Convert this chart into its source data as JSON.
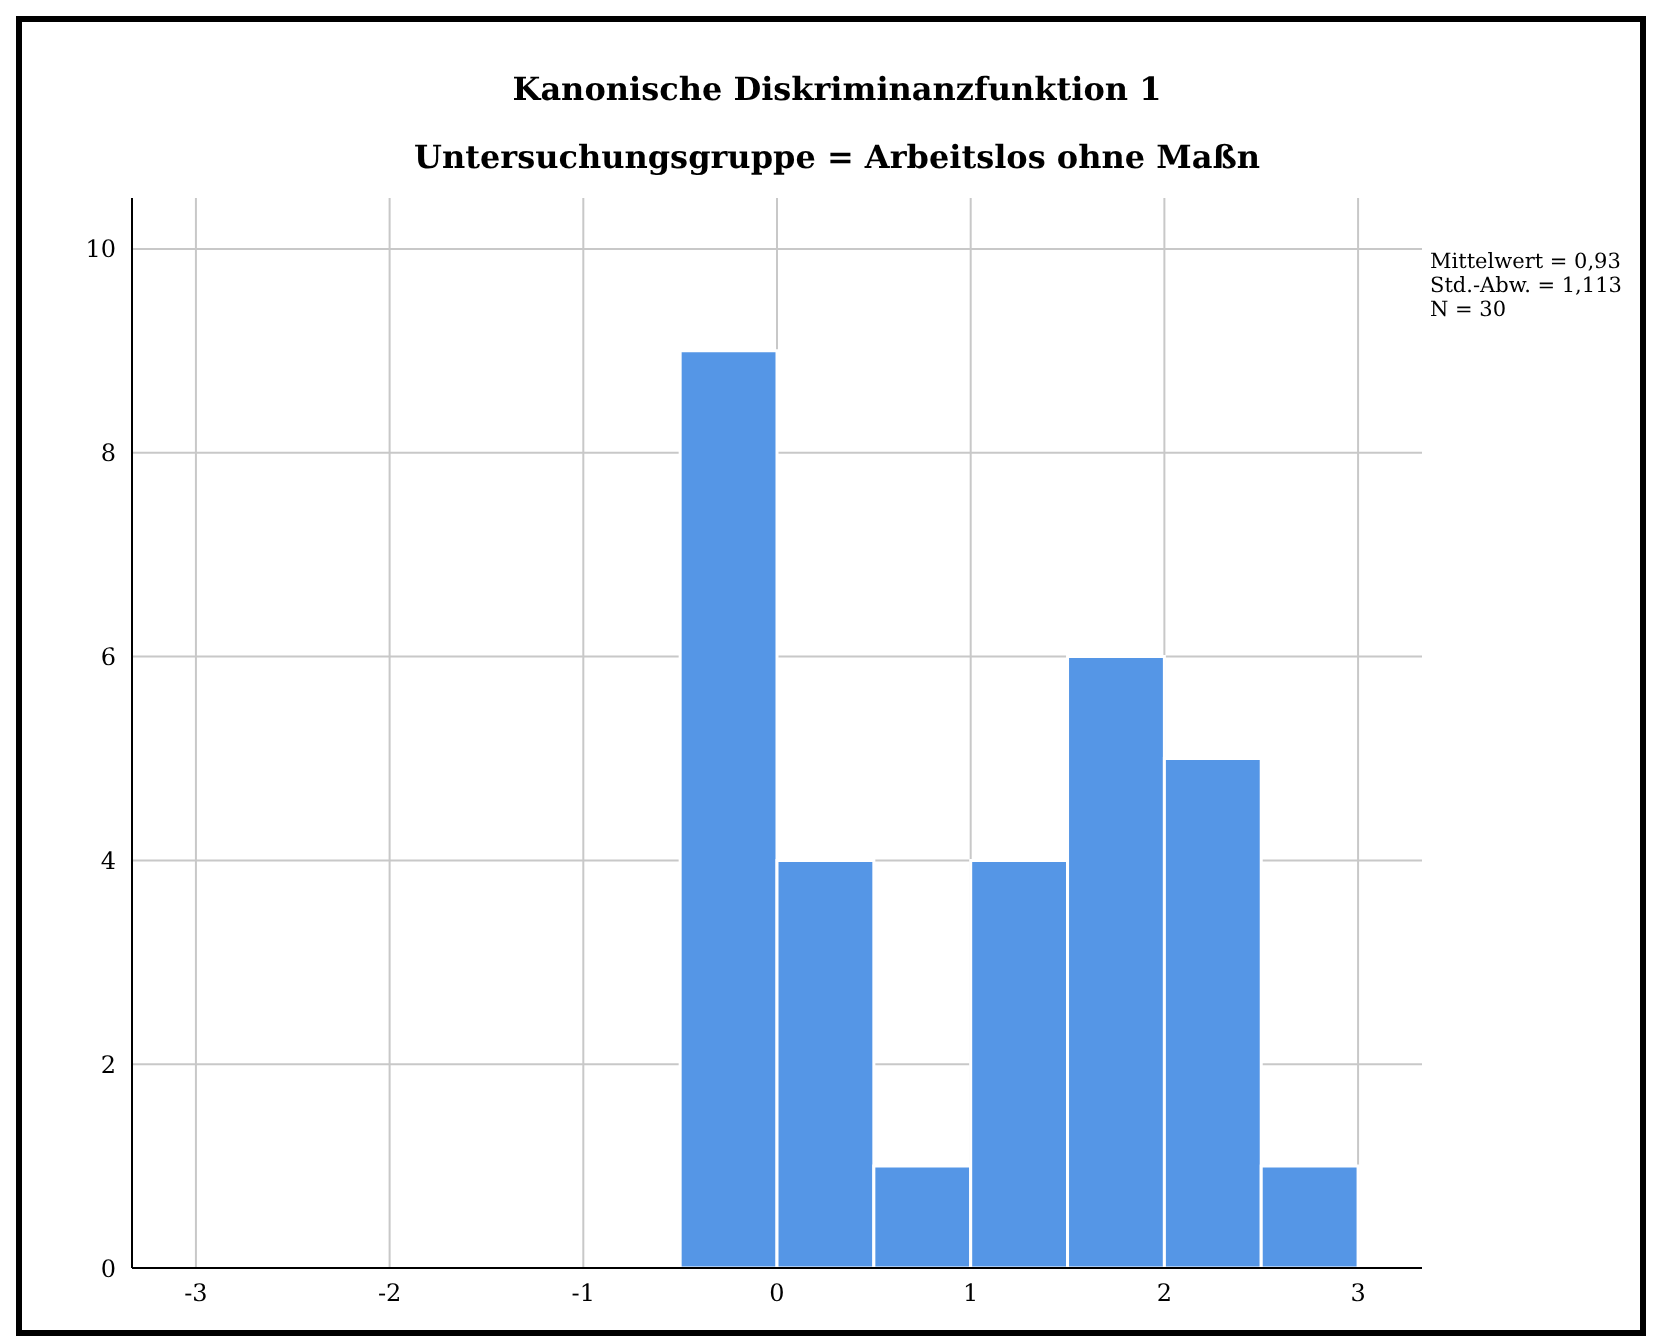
{
  "chart_data": {
    "type": "histogram",
    "title": "Kanonische Diskriminanzfunktion 1",
    "subtitle": "Untersuchungsgruppe = Arbeitslos ohne Maßn",
    "bins": [
      -0.5,
      0,
      0.5,
      1,
      1.5,
      2,
      2.5,
      3
    ],
    "values": [
      9,
      4,
      1,
      4,
      6,
      5,
      1
    ],
    "color": "#5596e6",
    "xlim": [
      -3.33,
      3.33
    ],
    "xticks": [
      -3,
      -2,
      -1,
      0,
      1,
      2,
      3
    ],
    "ylim": [
      0,
      10.5
    ],
    "yticks": [
      0,
      2,
      4,
      6,
      8,
      10
    ],
    "grid": true,
    "annotations": [
      "Mittelwert = 0,93",
      "Std.-Abw. = 1,113",
      "N = 30"
    ]
  }
}
